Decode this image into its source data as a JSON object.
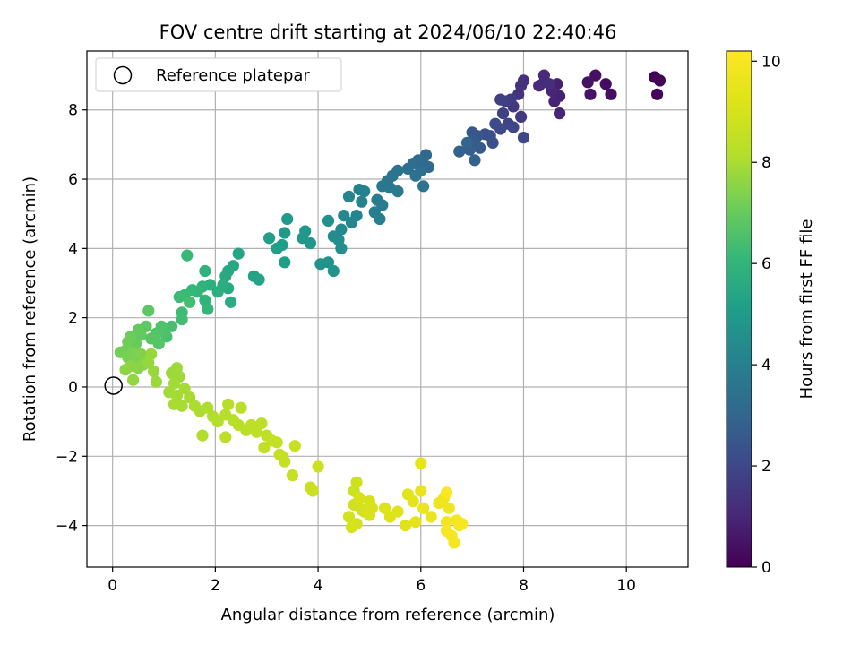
{
  "chart_data": {
    "type": "scatter",
    "title": "FOV centre drift starting at 2024/06/10 22:40:46",
    "xlabel": "Angular distance from reference (arcmin)",
    "ylabel": "Rotation from reference (arcmin)",
    "xlim": [
      -0.5,
      11.2
    ],
    "ylim": [
      -5.2,
      9.7
    ],
    "xticks": [
      0,
      2,
      4,
      6,
      8,
      10
    ],
    "yticks": [
      -4,
      -2,
      0,
      2,
      4,
      6,
      8
    ],
    "grid": true,
    "legend": {
      "position": "top-left",
      "entries": [
        "Reference platepar"
      ]
    },
    "reference_point": {
      "x": 0,
      "y": 0
    },
    "colorbar": {
      "label": "Hours from first FF file",
      "range": [
        0,
        10.2
      ],
      "ticks": [
        0,
        2,
        4,
        6,
        8,
        10
      ],
      "colormap": "viridis"
    },
    "points": [
      [
        10.55,
        8.95,
        0.05
      ],
      [
        10.65,
        8.85,
        0.1
      ],
      [
        10.6,
        8.45,
        0.15
      ],
      [
        9.6,
        8.75,
        0.3
      ],
      [
        9.7,
        8.45,
        0.35
      ],
      [
        9.4,
        9.0,
        0.4
      ],
      [
        9.25,
        8.8,
        0.45
      ],
      [
        9.3,
        8.45,
        0.5
      ],
      [
        8.65,
        8.75,
        0.8
      ],
      [
        8.7,
        8.4,
        0.85
      ],
      [
        8.6,
        8.25,
        0.9
      ],
      [
        8.7,
        7.9,
        0.95
      ],
      [
        8.55,
        8.55,
        1.0
      ],
      [
        8.4,
        8.8,
        1.05
      ],
      [
        8.3,
        8.7,
        1.1
      ],
      [
        8.4,
        9.0,
        1.15
      ],
      [
        8.5,
        8.75,
        1.2
      ],
      [
        8.0,
        8.85,
        1.3
      ],
      [
        7.95,
        8.7,
        1.35
      ],
      [
        7.9,
        8.45,
        1.4
      ],
      [
        7.8,
        8.1,
        1.5
      ],
      [
        7.95,
        7.8,
        1.6
      ],
      [
        7.75,
        8.3,
        1.6
      ],
      [
        7.65,
        8.25,
        1.7
      ],
      [
        7.55,
        8.3,
        1.75
      ],
      [
        7.6,
        7.9,
        1.8
      ],
      [
        7.7,
        7.6,
        1.9
      ],
      [
        7.8,
        7.5,
        1.95
      ],
      [
        8.0,
        7.2,
        2.0
      ],
      [
        7.55,
        7.45,
        2.05
      ],
      [
        7.45,
        7.6,
        2.1
      ],
      [
        7.35,
        7.25,
        2.2
      ],
      [
        7.4,
        7.05,
        2.3
      ],
      [
        7.25,
        7.3,
        2.35
      ],
      [
        7.1,
        7.25,
        2.45
      ],
      [
        7.0,
        7.35,
        2.5
      ],
      [
        7.05,
        7.1,
        2.6
      ],
      [
        7.15,
        6.9,
        2.65
      ],
      [
        6.95,
        6.85,
        2.75
      ],
      [
        6.75,
        6.8,
        2.85
      ],
      [
        7.05,
        6.55,
        2.9
      ],
      [
        6.9,
        7.05,
        3.0
      ],
      [
        6.1,
        6.7,
        3.05
      ],
      [
        6.05,
        6.45,
        3.1
      ],
      [
        6.15,
        6.35,
        3.15
      ],
      [
        5.95,
        6.55,
        3.2
      ],
      [
        5.85,
        6.45,
        3.25
      ],
      [
        6.0,
        6.25,
        3.3
      ],
      [
        5.75,
        6.3,
        3.35
      ],
      [
        5.9,
        6.1,
        3.4
      ],
      [
        6.05,
        5.8,
        3.45
      ],
      [
        5.55,
        6.25,
        3.5
      ],
      [
        5.45,
        6.1,
        3.55
      ],
      [
        5.35,
        5.95,
        3.6
      ],
      [
        5.4,
        5.75,
        3.65
      ],
      [
        5.25,
        5.8,
        3.7
      ],
      [
        5.55,
        5.65,
        3.75
      ],
      [
        5.15,
        5.4,
        3.8
      ],
      [
        5.25,
        5.25,
        3.85
      ],
      [
        5.1,
        5.05,
        3.9
      ],
      [
        5.2,
        4.85,
        3.95
      ],
      [
        4.9,
        5.65,
        4.0
      ],
      [
        4.8,
        5.7,
        4.05
      ],
      [
        4.85,
        5.35,
        4.1
      ],
      [
        4.6,
        5.5,
        4.15
      ],
      [
        4.75,
        4.95,
        4.2
      ],
      [
        4.65,
        4.75,
        4.25
      ],
      [
        4.5,
        4.95,
        4.3
      ],
      [
        4.45,
        4.55,
        4.35
      ],
      [
        4.3,
        4.35,
        4.45
      ],
      [
        4.4,
        4.25,
        4.5
      ],
      [
        4.45,
        4.0,
        4.55
      ],
      [
        4.2,
        4.8,
        4.6
      ],
      [
        4.05,
        3.55,
        4.65
      ],
      [
        4.2,
        3.6,
        4.7
      ],
      [
        4.3,
        3.35,
        4.75
      ],
      [
        3.75,
        4.5,
        4.8
      ],
      [
        3.85,
        4.15,
        4.85
      ],
      [
        3.7,
        4.3,
        4.9
      ],
      [
        3.4,
        4.85,
        4.95
      ],
      [
        3.35,
        4.45,
        5.0
      ],
      [
        3.3,
        4.1,
        5.05
      ],
      [
        3.2,
        4.0,
        5.1
      ],
      [
        3.35,
        3.6,
        5.15
      ],
      [
        3.05,
        4.3,
        5.2
      ],
      [
        2.75,
        3.2,
        5.3
      ],
      [
        2.85,
        3.1,
        5.35
      ],
      [
        2.45,
        3.85,
        5.4
      ],
      [
        2.35,
        3.5,
        5.45
      ],
      [
        2.25,
        3.35,
        5.5
      ],
      [
        2.2,
        3.2,
        5.55
      ],
      [
        2.25,
        2.85,
        5.6
      ],
      [
        2.3,
        2.45,
        5.65
      ],
      [
        2.15,
        2.95,
        5.7
      ],
      [
        2.05,
        2.75,
        5.75
      ],
      [
        1.9,
        2.95,
        5.8
      ],
      [
        1.8,
        3.35,
        5.85
      ],
      [
        1.75,
        2.9,
        5.9
      ],
      [
        1.8,
        2.5,
        5.95
      ],
      [
        1.85,
        2.25,
        6.0
      ],
      [
        1.65,
        2.75,
        6.05
      ],
      [
        1.55,
        2.8,
        6.1
      ],
      [
        1.45,
        3.8,
        6.15
      ],
      [
        1.4,
        2.65,
        6.2
      ],
      [
        1.3,
        2.6,
        6.25
      ],
      [
        1.35,
        2.15,
        6.3
      ],
      [
        1.35,
        1.95,
        6.35
      ],
      [
        1.5,
        2.45,
        6.4
      ],
      [
        1.15,
        1.75,
        6.45
      ],
      [
        1.05,
        1.45,
        6.5
      ],
      [
        1.0,
        1.6,
        6.55
      ],
      [
        0.95,
        1.75,
        6.6
      ],
      [
        0.85,
        1.55,
        6.65
      ],
      [
        0.9,
        1.25,
        6.7
      ],
      [
        0.75,
        1.4,
        6.75
      ],
      [
        0.7,
        2.2,
        6.8
      ],
      [
        0.65,
        1.75,
        6.85
      ],
      [
        0.55,
        1.5,
        6.9
      ],
      [
        0.5,
        1.65,
        6.95
      ],
      [
        0.45,
        1.25,
        7.0
      ],
      [
        0.35,
        1.45,
        7.05
      ],
      [
        0.3,
        1.3,
        7.1
      ],
      [
        0.25,
        1.05,
        7.15
      ],
      [
        0.15,
        1.0,
        7.2
      ],
      [
        0.3,
        0.85,
        7.25
      ],
      [
        0.4,
        1.0,
        7.3
      ],
      [
        0.45,
        0.75,
        7.35
      ],
      [
        0.55,
        0.95,
        7.4
      ],
      [
        0.6,
        0.65,
        7.45
      ],
      [
        0.5,
        0.55,
        7.5
      ],
      [
        0.35,
        0.6,
        7.55
      ],
      [
        0.25,
        0.5,
        7.6
      ],
      [
        0.4,
        0.2,
        7.65
      ],
      [
        0.7,
        0.7,
        7.7
      ],
      [
        0.75,
        0.95,
        7.72
      ],
      [
        0.8,
        0.45,
        7.75
      ],
      [
        0.85,
        0.15,
        7.78
      ],
      [
        1.15,
        0.4,
        7.8
      ],
      [
        1.25,
        0.55,
        7.82
      ],
      [
        1.3,
        0.3,
        7.85
      ],
      [
        1.2,
        0.1,
        7.88
      ],
      [
        1.1,
        -0.15,
        7.9
      ],
      [
        1.25,
        -0.25,
        7.92
      ],
      [
        1.4,
        -0.05,
        7.94
      ],
      [
        1.5,
        -0.3,
        7.96
      ],
      [
        1.35,
        -0.55,
        7.98
      ],
      [
        1.2,
        -0.5,
        8.0
      ],
      [
        1.6,
        -0.55,
        8.02
      ],
      [
        1.7,
        -0.7,
        8.05
      ],
      [
        1.85,
        -0.6,
        8.08
      ],
      [
        1.95,
        -0.85,
        8.1
      ],
      [
        1.75,
        -1.4,
        8.12
      ],
      [
        2.05,
        -1.0,
        8.15
      ],
      [
        2.2,
        -0.8,
        8.18
      ],
      [
        2.25,
        -0.5,
        8.2
      ],
      [
        2.35,
        -0.95,
        8.22
      ],
      [
        2.45,
        -1.1,
        8.25
      ],
      [
        2.5,
        -0.6,
        8.28
      ],
      [
        2.6,
        -1.25,
        8.3
      ],
      [
        2.2,
        -1.45,
        8.32
      ],
      [
        2.7,
        -1.1,
        8.35
      ],
      [
        2.8,
        -1.3,
        8.38
      ],
      [
        2.9,
        -1.05,
        8.4
      ],
      [
        3.0,
        -1.4,
        8.42
      ],
      [
        2.95,
        -1.75,
        8.45
      ],
      [
        3.1,
        -1.55,
        8.48
      ],
      [
        3.2,
        -1.6,
        8.5
      ],
      [
        3.25,
        -1.95,
        8.52
      ],
      [
        3.35,
        -2.15,
        8.55
      ],
      [
        3.3,
        -2.0,
        8.58
      ],
      [
        3.5,
        -2.55,
        8.6
      ],
      [
        3.55,
        -1.7,
        8.62
      ],
      [
        3.85,
        -2.9,
        8.65
      ],
      [
        3.9,
        -3.0,
        8.68
      ],
      [
        4.0,
        -2.3,
        8.7
      ],
      [
        4.7,
        -3.0,
        8.75
      ],
      [
        4.75,
        -2.75,
        8.78
      ],
      [
        4.8,
        -3.2,
        8.8
      ],
      [
        4.7,
        -3.4,
        8.82
      ],
      [
        4.85,
        -3.55,
        8.85
      ],
      [
        4.6,
        -3.75,
        8.88
      ],
      [
        4.75,
        -3.95,
        8.9
      ],
      [
        4.9,
        -3.6,
        8.92
      ],
      [
        5.0,
        -3.3,
        8.95
      ],
      [
        5.05,
        -3.5,
        8.98
      ],
      [
        4.65,
        -4.05,
        9.0
      ],
      [
        4.8,
        -3.25,
        9.05
      ],
      [
        5.0,
        -3.7,
        9.1
      ],
      [
        5.3,
        -3.5,
        9.15
      ],
      [
        5.4,
        -3.75,
        9.2
      ],
      [
        5.55,
        -3.6,
        9.25
      ],
      [
        5.7,
        -4.0,
        9.3
      ],
      [
        5.75,
        -3.1,
        9.35
      ],
      [
        5.85,
        -3.3,
        9.4
      ],
      [
        5.9,
        -3.9,
        9.45
      ],
      [
        6.0,
        -2.2,
        9.5
      ],
      [
        6.0,
        -3.0,
        9.55
      ],
      [
        6.05,
        -3.5,
        9.6
      ],
      [
        6.2,
        -3.75,
        9.65
      ],
      [
        6.35,
        -3.35,
        9.7
      ],
      [
        6.45,
        -3.2,
        9.75
      ],
      [
        6.55,
        -3.5,
        9.8
      ],
      [
        6.5,
        -3.9,
        9.85
      ],
      [
        6.6,
        -4.3,
        9.9
      ],
      [
        6.65,
        -4.5,
        9.93
      ],
      [
        6.7,
        -3.85,
        9.96
      ],
      [
        6.75,
        -4.0,
        9.98
      ],
      [
        6.8,
        -3.95,
        10.0
      ],
      [
        6.5,
        -4.15,
        10.05
      ],
      [
        6.5,
        -3.05,
        10.1
      ]
    ]
  }
}
